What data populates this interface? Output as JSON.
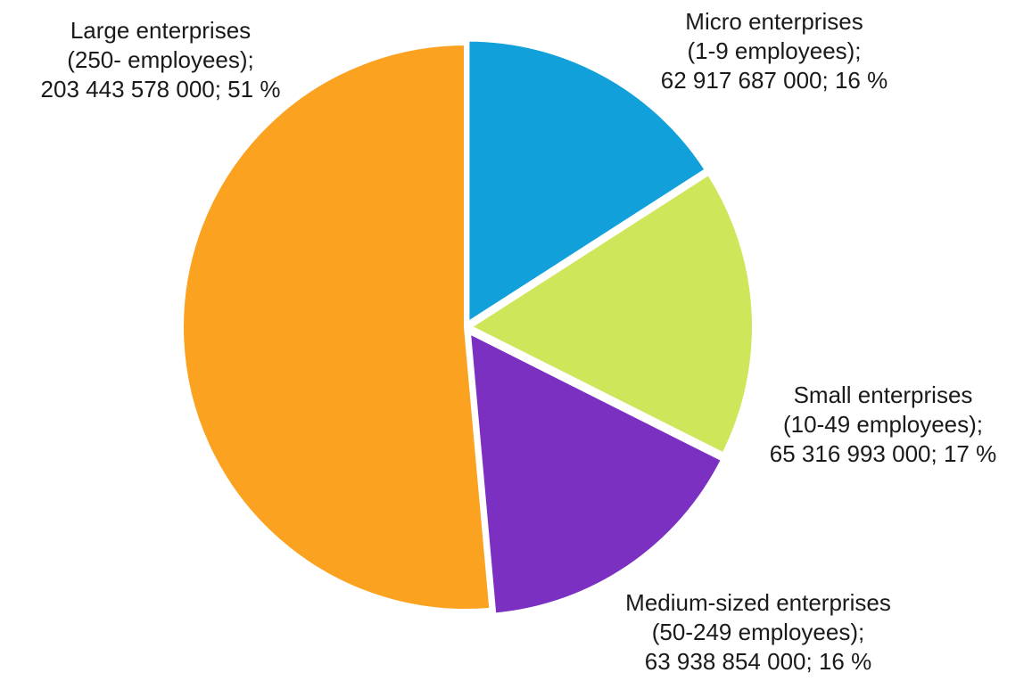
{
  "chart_data": {
    "type": "pie",
    "title": "",
    "slices": [
      {
        "name": "Micro enterprises",
        "category": "(1-9 employees);",
        "value": 62917687000,
        "value_text": "62 917 687 000; 16 %",
        "percent": 16,
        "color": "#12A0DB"
      },
      {
        "name": "Small enterprises",
        "category": "(10-49 employees);",
        "value": 65316993000,
        "value_text": "65 316 993 000; 17 %",
        "percent": 17,
        "color": "#CDE65A"
      },
      {
        "name": "Medium-sized enterprises",
        "category": "(50-249 employees);",
        "value": 63938854000,
        "value_text": "63 938 854 000; 16 %",
        "percent": 16,
        "color": "#7B30C2"
      },
      {
        "name": "Large enterprises",
        "category": "(250- employees);",
        "value": 203443578000,
        "value_text": "203 443 578 000; 51 %",
        "percent": 51,
        "color": "#FBA321"
      }
    ],
    "start_angle": "12 o'clock",
    "direction": "clockwise",
    "legend": "none",
    "labels": "outside"
  }
}
